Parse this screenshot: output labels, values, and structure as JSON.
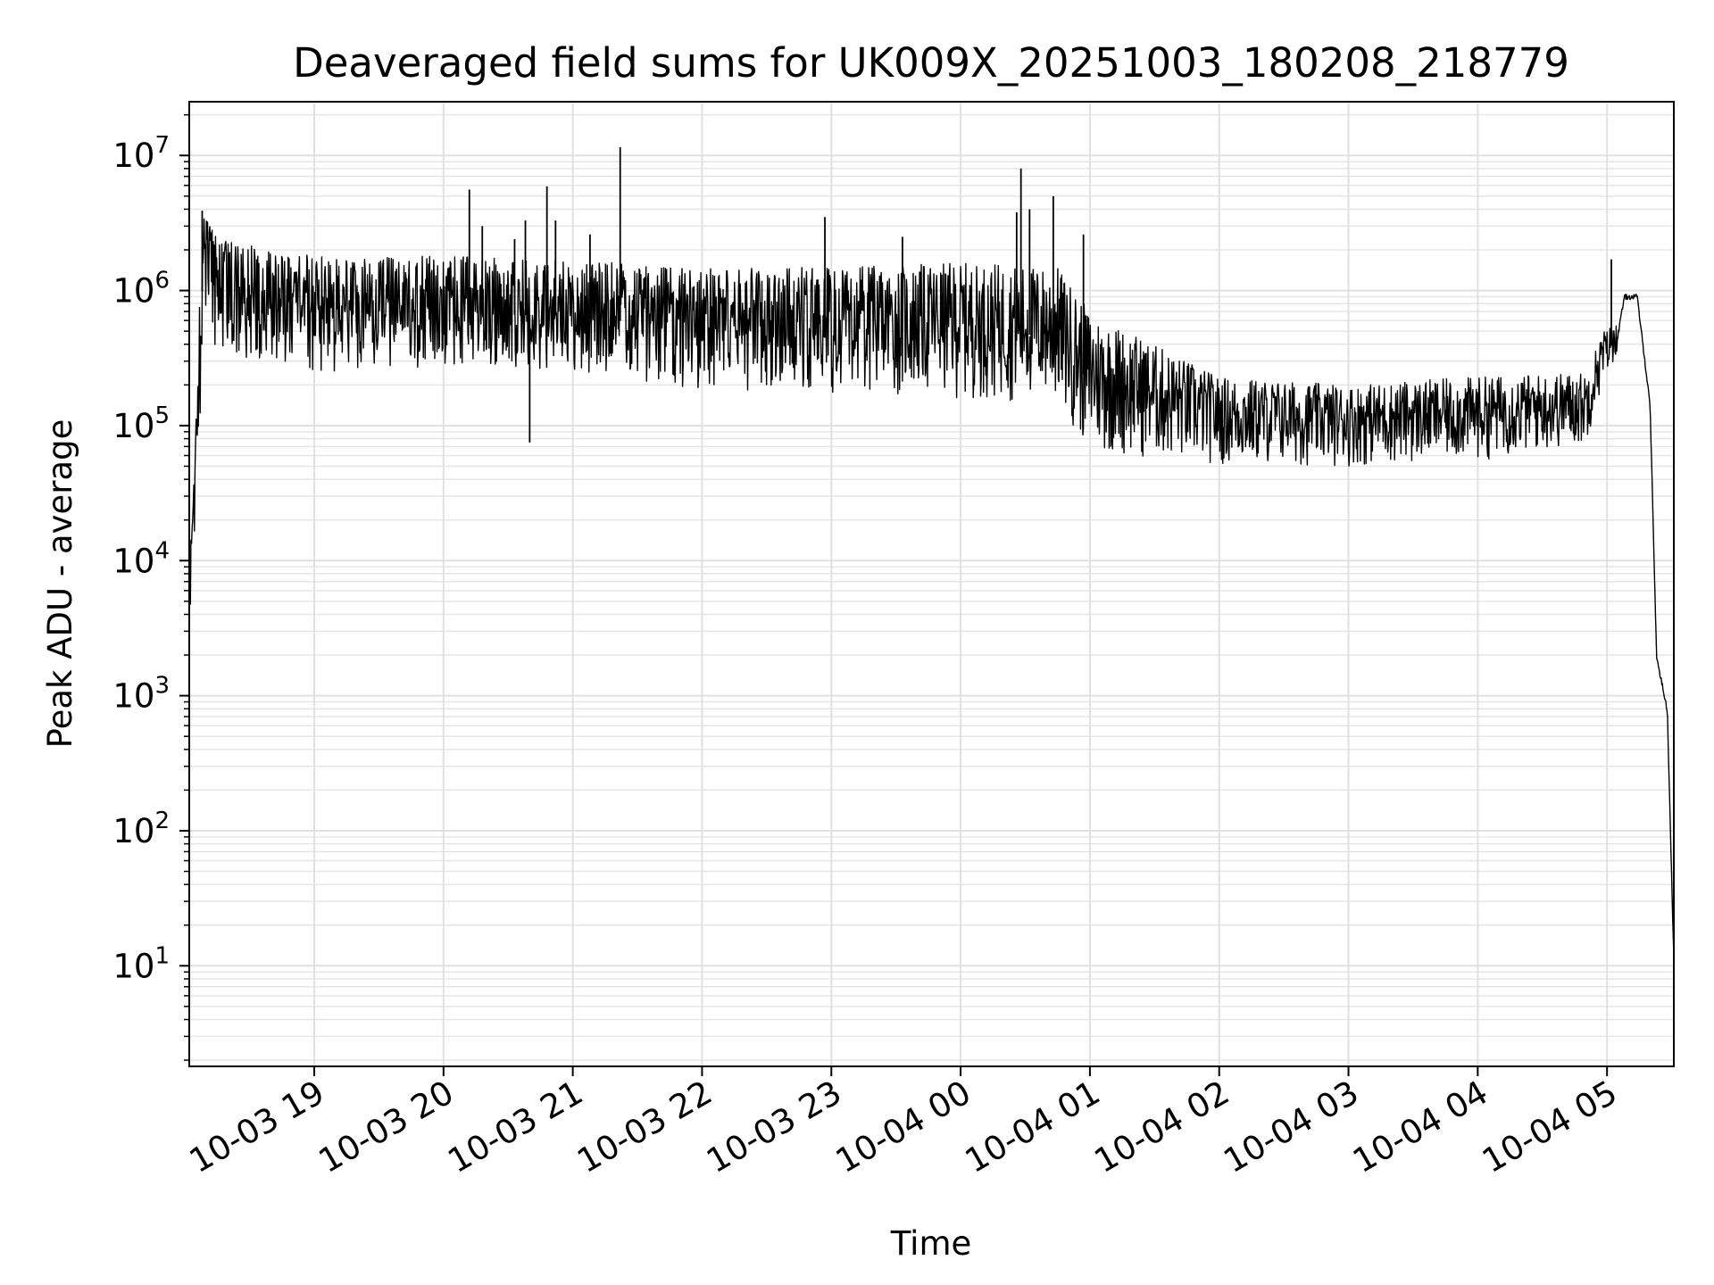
{
  "chart_data": {
    "type": "line",
    "title": "Deaveraged field sums for UK009X_20251003_180208_218779",
    "xlabel": "Time",
    "ylabel": "Peak ADU - average",
    "yscale": "log",
    "ylim": [
      1.8,
      25000000
    ],
    "xlim": [
      "2025-10-03 18:02",
      "2025-10-04 05:31"
    ],
    "grid": true,
    "line_color": "#000000",
    "x_ticks": [
      {
        "value": "2025-10-03 19:00",
        "label": "10-03 19"
      },
      {
        "value": "2025-10-03 20:00",
        "label": "10-03 20"
      },
      {
        "value": "2025-10-03 21:00",
        "label": "10-03 21"
      },
      {
        "value": "2025-10-03 22:00",
        "label": "10-03 22"
      },
      {
        "value": "2025-10-03 23:00",
        "label": "10-03 23"
      },
      {
        "value": "2025-10-04 00:00",
        "label": "10-04 00"
      },
      {
        "value": "2025-10-04 01:00",
        "label": "10-04 01"
      },
      {
        "value": "2025-10-04 02:00",
        "label": "10-04 02"
      },
      {
        "value": "2025-10-04 03:00",
        "label": "10-04 03"
      },
      {
        "value": "2025-10-04 04:00",
        "label": "10-04 04"
      },
      {
        "value": "2025-10-04 05:00",
        "label": "10-04 05"
      }
    ],
    "y_ticks": [
      {
        "value": 10,
        "base": "10",
        "exp": "1"
      },
      {
        "value": 100,
        "base": "10",
        "exp": "2"
      },
      {
        "value": 1000,
        "base": "10",
        "exp": "3"
      },
      {
        "value": 10000,
        "base": "10",
        "exp": "4"
      },
      {
        "value": 100000,
        "base": "10",
        "exp": "5"
      },
      {
        "value": 1000000,
        "base": "10",
        "exp": "6"
      },
      {
        "value": 10000000,
        "base": "10",
        "exp": "7"
      }
    ],
    "series": [
      {
        "envelope": [
          {
            "x": "2025-10-03 18:02",
            "low": 3000,
            "high": 7000
          },
          {
            "x": "2025-10-03 18:05",
            "low": 20000,
            "high": 100000
          },
          {
            "x": "2025-10-03 18:08",
            "low": 250000,
            "high": 3900000
          },
          {
            "x": "2025-10-03 18:15",
            "low": 300000,
            "high": 2500000
          },
          {
            "x": "2025-10-03 19:00",
            "low": 250000,
            "high": 1800000
          },
          {
            "x": "2025-10-03 20:00",
            "low": 250000,
            "high": 1800000
          },
          {
            "x": "2025-10-03 21:00",
            "low": 250000,
            "high": 1700000
          },
          {
            "x": "2025-10-03 22:00",
            "low": 180000,
            "high": 1450000
          },
          {
            "x": "2025-10-03 23:00",
            "low": 170000,
            "high": 1500000
          },
          {
            "x": "2025-10-04 00:00",
            "low": 160000,
            "high": 1600000
          },
          {
            "x": "2025-10-04 00:45",
            "low": 140000,
            "high": 1500000
          },
          {
            "x": "2025-10-04 01:00",
            "low": 60000,
            "high": 700000
          },
          {
            "x": "2025-10-04 02:00",
            "low": 50000,
            "high": 230000
          },
          {
            "x": "2025-10-04 03:00",
            "low": 50000,
            "high": 200000
          },
          {
            "x": "2025-10-04 04:00",
            "low": 55000,
            "high": 230000
          },
          {
            "x": "2025-10-04 04:50",
            "low": 70000,
            "high": 250000
          },
          {
            "x": "2025-10-04 04:58",
            "low": 200000,
            "high": 500000
          },
          {
            "x": "2025-10-04 05:05",
            "low": 350000,
            "high": 600000
          },
          {
            "x": "2025-10-04 05:08",
            "low": 800000,
            "high": 1000000
          },
          {
            "x": "2025-10-04 05:14",
            "low": 850000,
            "high": 950000
          },
          {
            "x": "2025-10-04 05:20",
            "low": 100000,
            "high": 200000
          },
          {
            "x": "2025-10-04 05:23",
            "low": 1500,
            "high": 2500
          },
          {
            "x": "2025-10-04 05:28",
            "low": 600,
            "high": 1000
          },
          {
            "x": "2025-10-04 05:31",
            "low": 3,
            "high": 40
          }
        ],
        "spikes": [
          {
            "x": "2025-10-03 18:08",
            "value": 3900000
          },
          {
            "x": "2025-10-03 20:12",
            "value": 5600000
          },
          {
            "x": "2025-10-03 20:18",
            "value": 3000000
          },
          {
            "x": "2025-10-03 20:33",
            "value": 2400000
          },
          {
            "x": "2025-10-03 20:38",
            "value": 3300000
          },
          {
            "x": "2025-10-03 20:40",
            "value": 75000
          },
          {
            "x": "2025-10-03 20:48",
            "value": 5900000
          },
          {
            "x": "2025-10-03 20:52",
            "value": 3300000
          },
          {
            "x": "2025-10-03 21:08",
            "value": 2600000
          },
          {
            "x": "2025-10-03 21:22",
            "value": 11500000
          },
          {
            "x": "2025-10-03 22:57",
            "value": 3500000
          },
          {
            "x": "2025-10-03 23:33",
            "value": 2500000
          },
          {
            "x": "2025-10-04 00:26",
            "value": 3800000
          },
          {
            "x": "2025-10-04 00:28",
            "value": 8000000
          },
          {
            "x": "2025-10-04 00:32",
            "value": 4000000
          },
          {
            "x": "2025-10-04 00:43",
            "value": 5000000
          },
          {
            "x": "2025-10-04 00:57",
            "value": 2600000
          },
          {
            "x": "2025-10-04 05:02",
            "value": 1700000
          }
        ]
      }
    ]
  }
}
